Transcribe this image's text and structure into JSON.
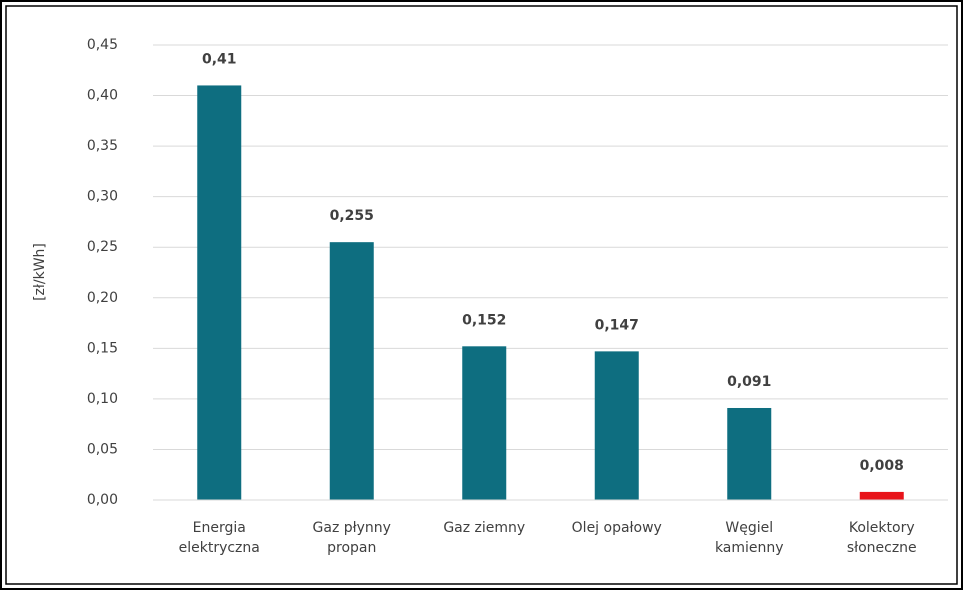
{
  "chart_data": {
    "type": "bar",
    "ylabel": "[zł/kWh]",
    "categories": [
      "Energia\nelektryczna",
      "Gaz płynny\npropan",
      "Gaz ziemny",
      "Olej opałowy",
      "Węgiel\nkamienny",
      "Kolektory\nsłoneczne"
    ],
    "values": [
      0.41,
      0.255,
      0.152,
      0.147,
      0.091,
      0.008
    ],
    "value_labels": [
      "0,41",
      "0,255",
      "0,152",
      "0,147",
      "0,091",
      "0,008"
    ],
    "colors": [
      "#0e6e80",
      "#0e6e80",
      "#0e6e80",
      "#0e6e80",
      "#0e6e80",
      "#e8141a"
    ],
    "ylim": [
      0,
      0.45
    ],
    "yticks": [
      {
        "value": 0,
        "label": "0,00"
      },
      {
        "value": 0.05,
        "label": "0,05"
      },
      {
        "value": 0.1,
        "label": "0,10"
      },
      {
        "value": 0.15,
        "label": "0,15"
      },
      {
        "value": 0.2,
        "label": "0,20"
      },
      {
        "value": 0.25,
        "label": "0,25"
      },
      {
        "value": 0.3,
        "label": "0,30"
      },
      {
        "value": 0.35,
        "label": "0,35"
      },
      {
        "value": 0.4,
        "label": "0,40"
      },
      {
        "value": 0.45,
        "label": "0,45"
      }
    ],
    "grid": true
  }
}
